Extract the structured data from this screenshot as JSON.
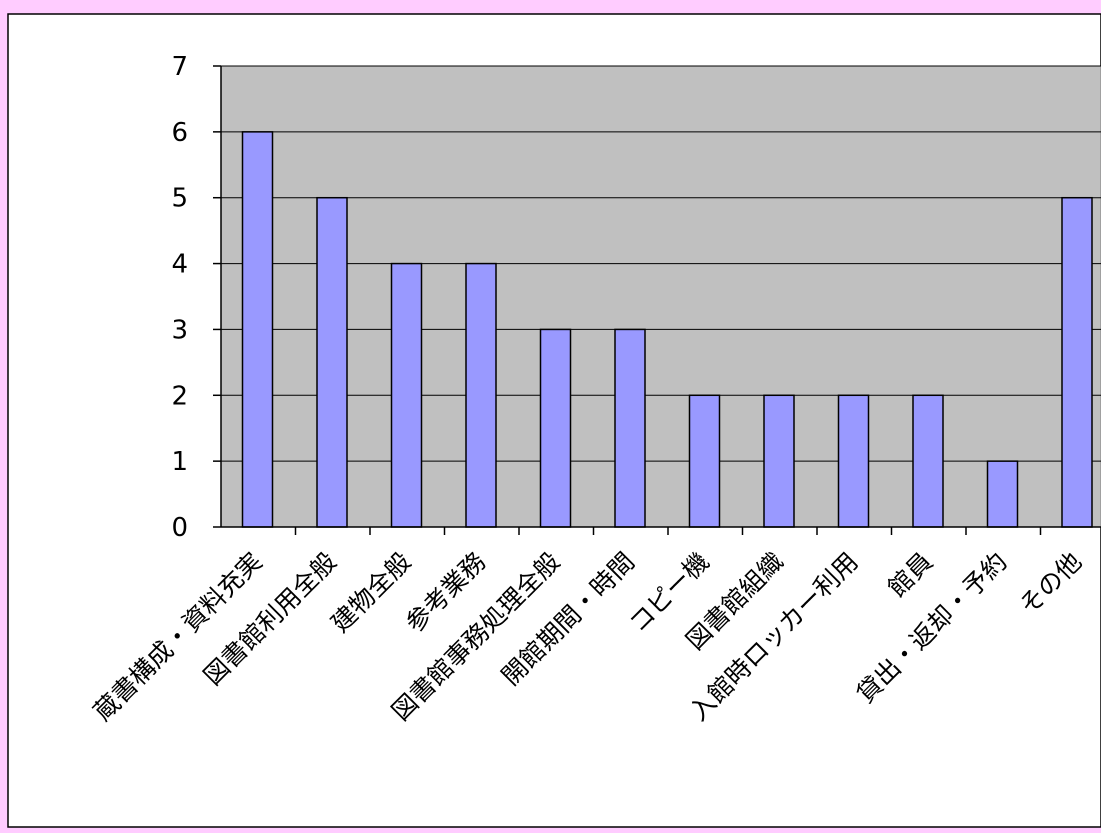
{
  "chart_data": {
    "type": "bar",
    "title": "",
    "xlabel": "",
    "ylabel": "",
    "ylim": [
      0,
      7
    ],
    "yticks": [
      0,
      1,
      2,
      3,
      4,
      5,
      6,
      7
    ],
    "grid": true,
    "categories": [
      "蔵書構成・資料充実",
      "図書館利用全般",
      "建物全般",
      "参考業務",
      "図書館事務処理全般",
      "開館期間・時間",
      "コピー機",
      "図書館組織",
      "入館時ロッカー利用",
      "館員",
      "貸出・返却・予約",
      "その他"
    ],
    "values": [
      6,
      5,
      4,
      4,
      3,
      3,
      2,
      2,
      2,
      2,
      1,
      5
    ],
    "colors": {
      "page_background": "#ffccff",
      "panel_background": "#ffffff",
      "plot_background": "#c0c0c0",
      "bar_fill": "#9999ff",
      "bar_stroke": "#000000",
      "gridline": "#000000"
    }
  }
}
